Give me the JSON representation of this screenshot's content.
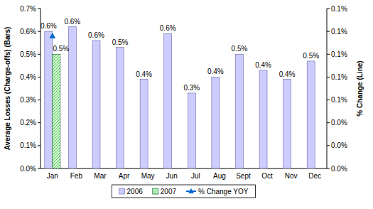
{
  "chart_data": {
    "type": "bar",
    "categories": [
      "Jan",
      "Feb",
      "Mar",
      "Apr",
      "May",
      "Jun",
      "Jul",
      "Aug",
      "Sept",
      "Oct",
      "Nov",
      "Dec"
    ],
    "series": [
      {
        "name": "2006",
        "color": "#ccccff",
        "values": [
          0.6,
          0.62,
          0.56,
          0.53,
          0.39,
          0.59,
          0.33,
          0.4,
          0.5,
          0.43,
          0.39,
          0.47
        ],
        "value_labels": [
          "0.6%",
          "0.6%",
          "0.6%",
          "0.5%",
          "0.4%",
          "0.6%",
          "0.3%",
          "0.4%",
          "0.5%",
          "0.4%",
          "0.4%",
          "0.5%"
        ]
      },
      {
        "name": "2007",
        "color": "#ccffcc",
        "values": [
          0.5,
          null,
          null,
          null,
          null,
          null,
          null,
          null,
          null,
          null,
          null,
          null
        ],
        "value_labels": [
          "0.5%",
          null,
          null,
          null,
          null,
          null,
          null,
          null,
          null,
          null,
          null,
          null
        ]
      },
      {
        "name": "% Change YOY",
        "type": "line",
        "axis": "y2",
        "color": "#0066cc",
        "marker": "triangle",
        "values": [
          0.116,
          null,
          null,
          null,
          null,
          null,
          null,
          null,
          null,
          null,
          null,
          null
        ]
      }
    ],
    "y_label": "Average Losses (Charge-offs) (Bars)",
    "y2_label": "% Change (Line)",
    "ylim": [
      0,
      0.7
    ],
    "yticks": [
      {
        "value": 0,
        "label": "0.0%"
      },
      {
        "value": 0.1,
        "label": "0.1%"
      },
      {
        "value": 0.2,
        "label": "0.2%"
      },
      {
        "value": 0.3,
        "label": "0.3%"
      },
      {
        "value": 0.4,
        "label": "0.4%"
      },
      {
        "value": 0.5,
        "label": "0.5%"
      },
      {
        "value": 0.6,
        "label": "0.6%"
      },
      {
        "value": 0.7,
        "label": "0.7%"
      }
    ],
    "y2lim": [
      0,
      0.14
    ],
    "y2ticks": [
      {
        "value": 0,
        "label": "0.0%"
      },
      {
        "value": 0.02,
        "label": "0.0%"
      },
      {
        "value": 0.04,
        "label": "0.0%"
      },
      {
        "value": 0.06,
        "label": "0.1%"
      },
      {
        "value": 0.08,
        "label": "0.1%"
      },
      {
        "value": 0.1,
        "label": "0.1%"
      },
      {
        "value": 0.12,
        "label": "0.1%"
      },
      {
        "value": 0.14,
        "label": "0.1%"
      }
    ],
    "data_labels": true,
    "grid": false,
    "legend": "bottom"
  }
}
